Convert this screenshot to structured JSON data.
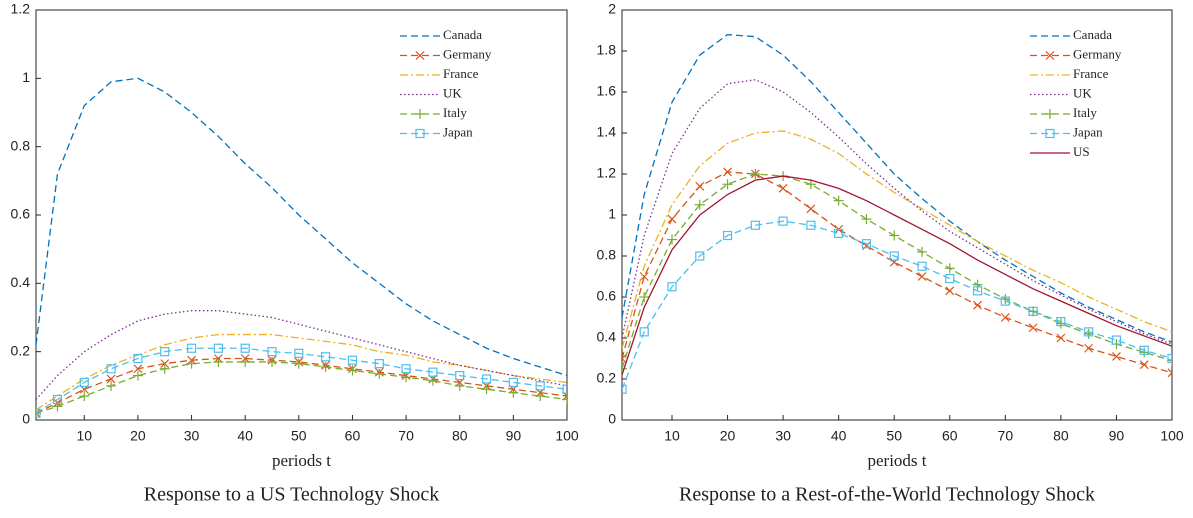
{
  "chart_data": [
    {
      "type": "line",
      "title": "Response to a US Technology Shock",
      "xlabel": "periods t",
      "x": [
        1,
        5,
        10,
        15,
        20,
        25,
        30,
        35,
        40,
        45,
        50,
        55,
        60,
        65,
        70,
        75,
        80,
        85,
        90,
        95,
        100
      ],
      "xlim": [
        1,
        100
      ],
      "xticks": [
        10,
        20,
        30,
        40,
        50,
        60,
        70,
        80,
        90,
        100
      ],
      "ylim": [
        0,
        1.2
      ],
      "yticks": [
        0,
        0.2,
        0.4,
        0.6,
        0.8,
        1,
        1.2
      ],
      "grid": false,
      "legend": "northeast",
      "series": [
        {
          "name": "Canada",
          "color": "#0072bd",
          "dash": "dashed",
          "marker": "none",
          "values": [
            0.22,
            0.72,
            0.92,
            0.99,
            1.0,
            0.96,
            0.9,
            0.83,
            0.75,
            0.68,
            0.6,
            0.53,
            0.46,
            0.4,
            0.34,
            0.29,
            0.25,
            0.21,
            0.18,
            0.155,
            0.13
          ]
        },
        {
          "name": "Germany",
          "color": "#d95319",
          "dash": "dashed",
          "marker": "x",
          "values": [
            0.02,
            0.05,
            0.09,
            0.12,
            0.15,
            0.165,
            0.175,
            0.18,
            0.18,
            0.175,
            0.17,
            0.16,
            0.15,
            0.14,
            0.13,
            0.12,
            0.11,
            0.1,
            0.09,
            0.08,
            0.07
          ]
        },
        {
          "name": "France",
          "color": "#edb120",
          "dash": "dashdot",
          "marker": "none",
          "values": [
            0.03,
            0.07,
            0.12,
            0.16,
            0.19,
            0.22,
            0.24,
            0.25,
            0.25,
            0.25,
            0.24,
            0.23,
            0.22,
            0.2,
            0.19,
            0.17,
            0.16,
            0.145,
            0.13,
            0.12,
            0.11
          ]
        },
        {
          "name": "UK",
          "color": "#7e2f8e",
          "dash": "dotted",
          "marker": "none",
          "values": [
            0.06,
            0.13,
            0.2,
            0.25,
            0.29,
            0.31,
            0.32,
            0.32,
            0.31,
            0.3,
            0.28,
            0.26,
            0.24,
            0.22,
            0.2,
            0.18,
            0.16,
            0.145,
            0.13,
            0.115,
            0.1
          ]
        },
        {
          "name": "Italy",
          "color": "#77ac30",
          "dash": "dashed",
          "marker": "plus",
          "values": [
            0.02,
            0.04,
            0.07,
            0.1,
            0.13,
            0.15,
            0.165,
            0.17,
            0.17,
            0.17,
            0.165,
            0.155,
            0.145,
            0.135,
            0.125,
            0.115,
            0.1,
            0.09,
            0.08,
            0.07,
            0.06
          ]
        },
        {
          "name": "Japan",
          "color": "#4dbeee",
          "dash": "dashed",
          "marker": "square",
          "values": [
            0.02,
            0.06,
            0.11,
            0.15,
            0.18,
            0.2,
            0.21,
            0.21,
            0.21,
            0.2,
            0.195,
            0.185,
            0.175,
            0.165,
            0.15,
            0.14,
            0.13,
            0.12,
            0.11,
            0.1,
            0.09
          ]
        }
      ]
    },
    {
      "type": "line",
      "title": "Response to a Rest-of-the-World Technology Shock",
      "xlabel": "periods t",
      "x": [
        1,
        5,
        10,
        15,
        20,
        25,
        30,
        35,
        40,
        45,
        50,
        55,
        60,
        65,
        70,
        75,
        80,
        85,
        90,
        95,
        100
      ],
      "xlim": [
        1,
        100
      ],
      "xticks": [
        10,
        20,
        30,
        40,
        50,
        60,
        70,
        80,
        90,
        100
      ],
      "ylim": [
        0,
        2
      ],
      "yticks": [
        0,
        0.2,
        0.4,
        0.6,
        0.8,
        1,
        1.2,
        1.4,
        1.6,
        1.8,
        2
      ],
      "grid": false,
      "legend": "northeast",
      "series": [
        {
          "name": "Canada",
          "color": "#0072bd",
          "dash": "dashed",
          "marker": "none",
          "values": [
            0.5,
            1.1,
            1.55,
            1.78,
            1.88,
            1.87,
            1.78,
            1.65,
            1.5,
            1.35,
            1.2,
            1.08,
            0.97,
            0.87,
            0.78,
            0.7,
            0.62,
            0.55,
            0.49,
            0.43,
            0.38
          ]
        },
        {
          "name": "Germany",
          "color": "#d95319",
          "dash": "dashed",
          "marker": "x",
          "values": [
            0.3,
            0.7,
            0.98,
            1.14,
            1.21,
            1.2,
            1.13,
            1.03,
            0.93,
            0.85,
            0.77,
            0.7,
            0.63,
            0.56,
            0.5,
            0.45,
            0.4,
            0.35,
            0.31,
            0.27,
            0.23
          ]
        },
        {
          "name": "France",
          "color": "#edb120",
          "dash": "dashdot",
          "marker": "none",
          "values": [
            0.35,
            0.75,
            1.05,
            1.24,
            1.35,
            1.4,
            1.41,
            1.37,
            1.3,
            1.2,
            1.11,
            1.03,
            0.95,
            0.87,
            0.8,
            0.73,
            0.67,
            0.6,
            0.54,
            0.48,
            0.43
          ]
        },
        {
          "name": "UK",
          "color": "#7e2f8e",
          "dash": "dotted",
          "marker": "none",
          "values": [
            0.4,
            0.9,
            1.3,
            1.52,
            1.64,
            1.66,
            1.6,
            1.5,
            1.38,
            1.25,
            1.13,
            1.02,
            0.92,
            0.84,
            0.76,
            0.68,
            0.61,
            0.54,
            0.48,
            0.42,
            0.37
          ]
        },
        {
          "name": "Italy",
          "color": "#77ac30",
          "dash": "dashed",
          "marker": "plus",
          "values": [
            0.25,
            0.6,
            0.88,
            1.05,
            1.15,
            1.2,
            1.19,
            1.15,
            1.07,
            0.98,
            0.9,
            0.82,
            0.74,
            0.66,
            0.59,
            0.53,
            0.47,
            0.42,
            0.37,
            0.33,
            0.29
          ]
        },
        {
          "name": "Japan",
          "color": "#4dbeee",
          "dash": "dashed",
          "marker": "square",
          "values": [
            0.15,
            0.43,
            0.65,
            0.8,
            0.9,
            0.95,
            0.97,
            0.95,
            0.91,
            0.86,
            0.8,
            0.75,
            0.69,
            0.63,
            0.58,
            0.53,
            0.48,
            0.43,
            0.39,
            0.34,
            0.3
          ]
        },
        {
          "name": "US",
          "color": "#a2142f",
          "dash": "solid",
          "marker": "none",
          "values": [
            0.22,
            0.55,
            0.83,
            1.0,
            1.1,
            1.17,
            1.19,
            1.17,
            1.13,
            1.07,
            1.0,
            0.93,
            0.86,
            0.78,
            0.71,
            0.64,
            0.58,
            0.52,
            0.46,
            0.41,
            0.36
          ]
        }
      ]
    }
  ]
}
